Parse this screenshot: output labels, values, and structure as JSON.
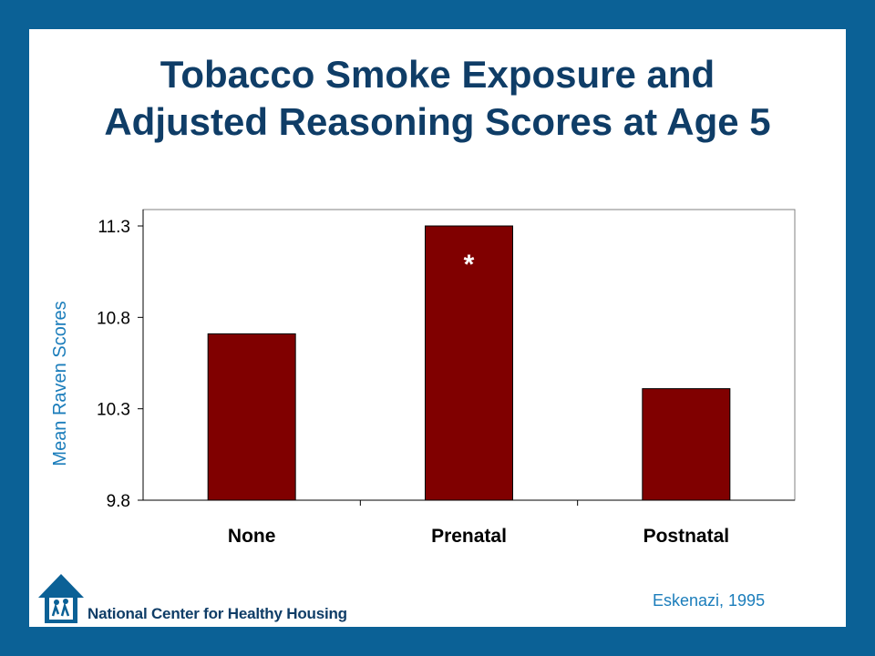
{
  "slide": {
    "title_line1": "Tobacco Smoke Exposure and",
    "title_line2": "Adjusted Reasoning Scores at Age 5",
    "citation": "Eskenazi, 1995",
    "logo_text": "National Center for Healthy Housing",
    "logo_icon": "house-with-family-icon",
    "frame_color": "#0b6196",
    "title_color": "#0f3d67"
  },
  "chart_data": {
    "type": "bar",
    "title": "",
    "xlabel": "",
    "ylabel": "Mean Raven Scores",
    "ylabel_color": "#1b7dbb",
    "categories": [
      "None",
      "Prenatal",
      "Postnatal"
    ],
    "values": [
      10.71,
      11.3,
      10.41
    ],
    "bar_color": "#800000",
    "ylim": [
      9.8,
      11.4
    ],
    "yticks": [
      9.8,
      10.3,
      10.8,
      11.3
    ],
    "ytick_labels": [
      "9.8",
      "10.3",
      "10.8",
      "11.3"
    ],
    "annotations": [
      {
        "category": "Prenatal",
        "text": "*"
      }
    ],
    "grid": false,
    "legend": "none"
  }
}
